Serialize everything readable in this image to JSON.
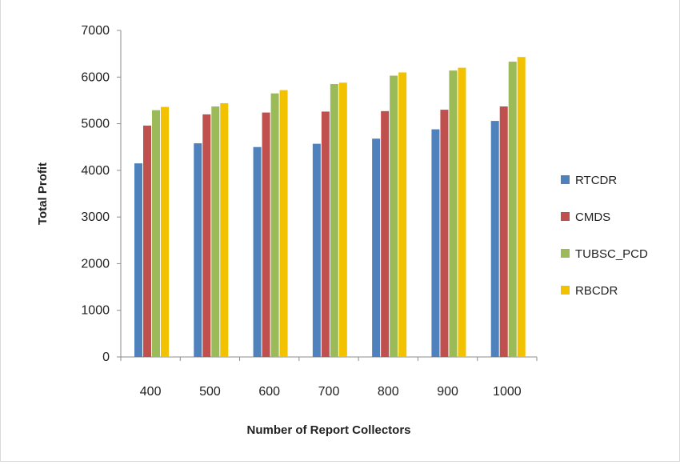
{
  "chart_data": {
    "type": "bar",
    "title": "",
    "xlabel": "Number of Report Collectors",
    "ylabel": "Total Profit",
    "categories": [
      "400",
      "500",
      "600",
      "700",
      "800",
      "900",
      "1000"
    ],
    "ylim": [
      0,
      7000
    ],
    "yticks": [
      "0",
      "1000",
      "2000",
      "3000",
      "4000",
      "5000",
      "6000",
      "7000"
    ],
    "grid": false,
    "legend_position": "right",
    "series": [
      {
        "name": "RTCDR",
        "color": "#4f81bd",
        "values": [
          4150,
          4580,
          4500,
          4570,
          4680,
          4880,
          5060
        ]
      },
      {
        "name": "CMDS",
        "color": "#c0504d",
        "values": [
          4960,
          5200,
          5240,
          5260,
          5270,
          5300,
          5370
        ]
      },
      {
        "name": "TUBSC_PCD",
        "color": "#9bbb59",
        "values": [
          5290,
          5370,
          5650,
          5850,
          6030,
          6140,
          6330
        ]
      },
      {
        "name": "RBCDR",
        "color": "#f2c100",
        "values": [
          5360,
          5440,
          5720,
          5880,
          6100,
          6200,
          6430
        ]
      }
    ]
  }
}
